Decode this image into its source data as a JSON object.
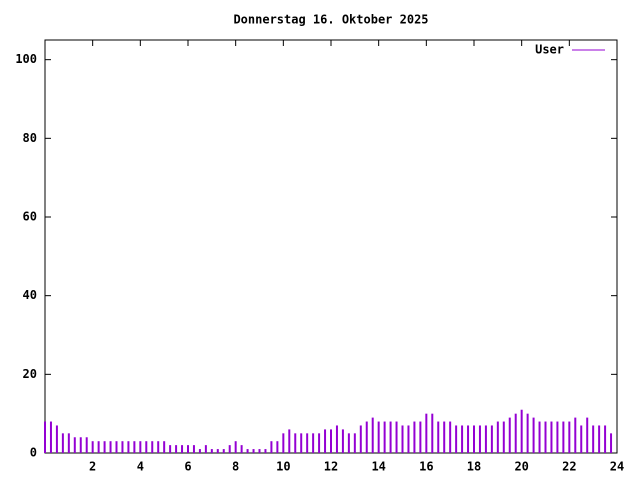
{
  "chart_data": {
    "type": "impulses",
    "title": "Donnerstag 16. Oktober 2025",
    "x": [
      0,
      0.25,
      0.5,
      0.75,
      1,
      1.25,
      1.5,
      1.75,
      2,
      2.25,
      2.5,
      2.75,
      3,
      3.25,
      3.5,
      3.75,
      4,
      4.25,
      4.5,
      4.75,
      5,
      5.25,
      5.5,
      5.75,
      6,
      6.25,
      6.5,
      6.75,
      7,
      7.25,
      7.5,
      7.75,
      8,
      8.25,
      8.5,
      8.75,
      9,
      9.25,
      9.5,
      9.75,
      10,
      10.25,
      10.5,
      10.75,
      11,
      11.25,
      11.5,
      11.75,
      12,
      12.25,
      12.5,
      12.75,
      13,
      13.25,
      13.5,
      13.75,
      14,
      14.25,
      14.5,
      14.75,
      15,
      15.25,
      15.5,
      15.75,
      16,
      16.25,
      16.5,
      16.75,
      17,
      17.25,
      17.5,
      17.75,
      18,
      18.25,
      18.5,
      18.75,
      19,
      19.25,
      19.5,
      19.75,
      20,
      20.25,
      20.5,
      20.75,
      21,
      21.25,
      21.5,
      21.75,
      22,
      22.25,
      22.5,
      22.75,
      23,
      23.25,
      23.5,
      23.75
    ],
    "series": [
      {
        "name": "User",
        "color": "#9400d3",
        "values": [
          8,
          8,
          7,
          5,
          5,
          4,
          4,
          4,
          3,
          3,
          3,
          3,
          3,
          3,
          3,
          3,
          3,
          3,
          3,
          3,
          3,
          2,
          2,
          2,
          2,
          2,
          1,
          2,
          1,
          1,
          1,
          2,
          3,
          2,
          1,
          1,
          1,
          1,
          3,
          3,
          5,
          6,
          5,
          5,
          5,
          5,
          5,
          6,
          6,
          7,
          6,
          5,
          5,
          7,
          8,
          9,
          8,
          8,
          8,
          8,
          7,
          7,
          8,
          8,
          10,
          10,
          8,
          8,
          8,
          7,
          7,
          7,
          7,
          7,
          7,
          7,
          8,
          8,
          9,
          10,
          11,
          10,
          9,
          8,
          8,
          8,
          8,
          8,
          8,
          9,
          7,
          9,
          7,
          7,
          7,
          5
        ]
      }
    ],
    "xlim": [
      0,
      24
    ],
    "xticks": [
      2,
      4,
      6,
      8,
      10,
      12,
      14,
      16,
      18,
      20,
      22,
      24
    ],
    "ylim": [
      0,
      105
    ],
    "yticks": [
      0,
      20,
      40,
      60,
      80,
      100
    ],
    "legend": "top-right"
  }
}
